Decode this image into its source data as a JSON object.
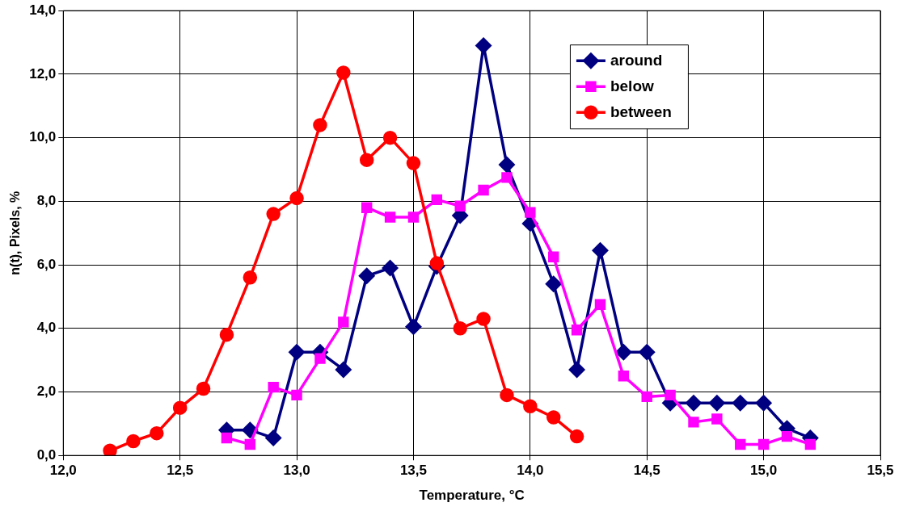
{
  "chart_data": {
    "type": "line",
    "xlabel": "Temperature, °C",
    "ylabel": "n(t), Pixels, %",
    "xlim": [
      12.0,
      15.5
    ],
    "xticks": [
      {
        "value": 12.0,
        "label": "12,0"
      },
      {
        "value": 12.5,
        "label": "12,5"
      },
      {
        "value": 13.0,
        "label": "13,0"
      },
      {
        "value": 13.5,
        "label": "13,5"
      },
      {
        "value": 14.0,
        "label": "14,0"
      },
      {
        "value": 14.5,
        "label": "14,5"
      },
      {
        "value": 15.0,
        "label": "15,0"
      },
      {
        "value": 15.5,
        "label": "15,5"
      }
    ],
    "ylim": [
      0,
      14
    ],
    "yticks": [
      {
        "value": 0,
        "label": "0,0"
      },
      {
        "value": 2,
        "label": "2,0"
      },
      {
        "value": 4,
        "label": "4,0"
      },
      {
        "value": 6,
        "label": "6,0"
      },
      {
        "value": 8,
        "label": "8,0"
      },
      {
        "value": 10,
        "label": "10,0"
      },
      {
        "value": 12,
        "label": "12,0"
      },
      {
        "value": 14,
        "label": "14,0"
      }
    ],
    "grid": true,
    "legend": "top right",
    "series": [
      {
        "name": "around",
        "color": "#000080",
        "marker": "diamond",
        "x": [
          12.7,
          12.8,
          12.9,
          13.0,
          13.1,
          13.2,
          13.3,
          13.4,
          13.5,
          13.6,
          13.7,
          13.8,
          13.9,
          14.0,
          14.1,
          14.2,
          14.3,
          14.4,
          14.5,
          14.6,
          14.7,
          14.8,
          14.9,
          15.0,
          15.1,
          15.2
        ],
        "values": [
          0.8,
          0.8,
          0.55,
          3.25,
          3.25,
          2.7,
          5.65,
          5.9,
          4.05,
          5.95,
          7.55,
          12.9,
          9.15,
          7.3,
          5.4,
          2.7,
          6.45,
          3.25,
          3.25,
          1.65,
          1.65,
          1.65,
          1.65,
          1.65,
          0.85,
          0.55
        ]
      },
      {
        "name": "below",
        "color": "#ff00ff",
        "marker": "square",
        "x": [
          12.7,
          12.8,
          12.9,
          13.0,
          13.1,
          13.2,
          13.3,
          13.4,
          13.5,
          13.6,
          13.7,
          13.8,
          13.9,
          14.0,
          14.1,
          14.2,
          14.3,
          14.4,
          14.5,
          14.6,
          14.7,
          14.8,
          14.9,
          15.0,
          15.1,
          15.2
        ],
        "values": [
          0.55,
          0.35,
          2.15,
          1.9,
          3.05,
          4.2,
          7.8,
          7.5,
          7.5,
          8.05,
          7.85,
          8.35,
          8.75,
          7.65,
          6.25,
          3.95,
          4.75,
          2.5,
          1.85,
          1.9,
          1.05,
          1.15,
          0.35,
          0.35,
          0.6,
          0.35
        ]
      },
      {
        "name": "between",
        "color": "#ff0000",
        "marker": "circle",
        "x": [
          12.2,
          12.3,
          12.4,
          12.5,
          12.6,
          12.7,
          12.8,
          12.9,
          13.0,
          13.1,
          13.2,
          13.3,
          13.4,
          13.5,
          13.6,
          13.7,
          13.8,
          13.9,
          14.0,
          14.1,
          14.2
        ],
        "values": [
          0.15,
          0.45,
          0.7,
          1.5,
          2.1,
          3.8,
          5.6,
          7.6,
          8.1,
          10.4,
          12.05,
          9.3,
          10.0,
          9.2,
          6.05,
          4.0,
          4.3,
          1.9,
          1.55,
          1.2,
          0.6
        ]
      }
    ]
  }
}
